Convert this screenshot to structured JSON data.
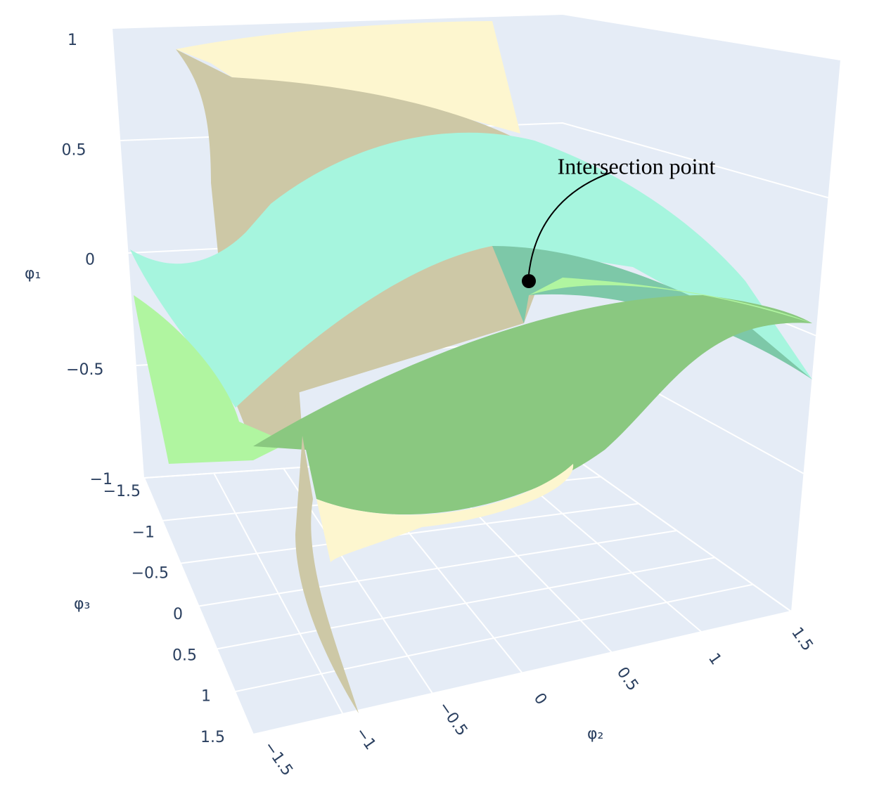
{
  "chart_data": {
    "type": "surface3d",
    "annotation": "Intersection point",
    "xlabel": "φ₂",
    "ylabel": "φ₃",
    "zlabel": "φ₁",
    "xlim": [
      -1.5,
      1.5
    ],
    "ylim": [
      -1.5,
      1.5
    ],
    "zlim": [
      -1,
      1
    ],
    "xticks": [
      {
        "value": -1.5,
        "label": "−1.5"
      },
      {
        "value": -1,
        "label": "−1"
      },
      {
        "value": -0.5,
        "label": "−0.5"
      },
      0,
      0.5,
      1,
      1.5
    ],
    "yticks": [
      {
        "value": -1.5,
        "label": "−1.5"
      },
      {
        "value": -1,
        "label": "−1"
      },
      {
        "value": -0.5,
        "label": "−0.5"
      },
      0,
      0.5,
      1,
      1.5
    ],
    "zticks": [
      {
        "value": -1,
        "label": "−1"
      },
      {
        "value": -0.5,
        "label": "−0.5"
      },
      0,
      0.5,
      1
    ],
    "grid": true
  }
}
